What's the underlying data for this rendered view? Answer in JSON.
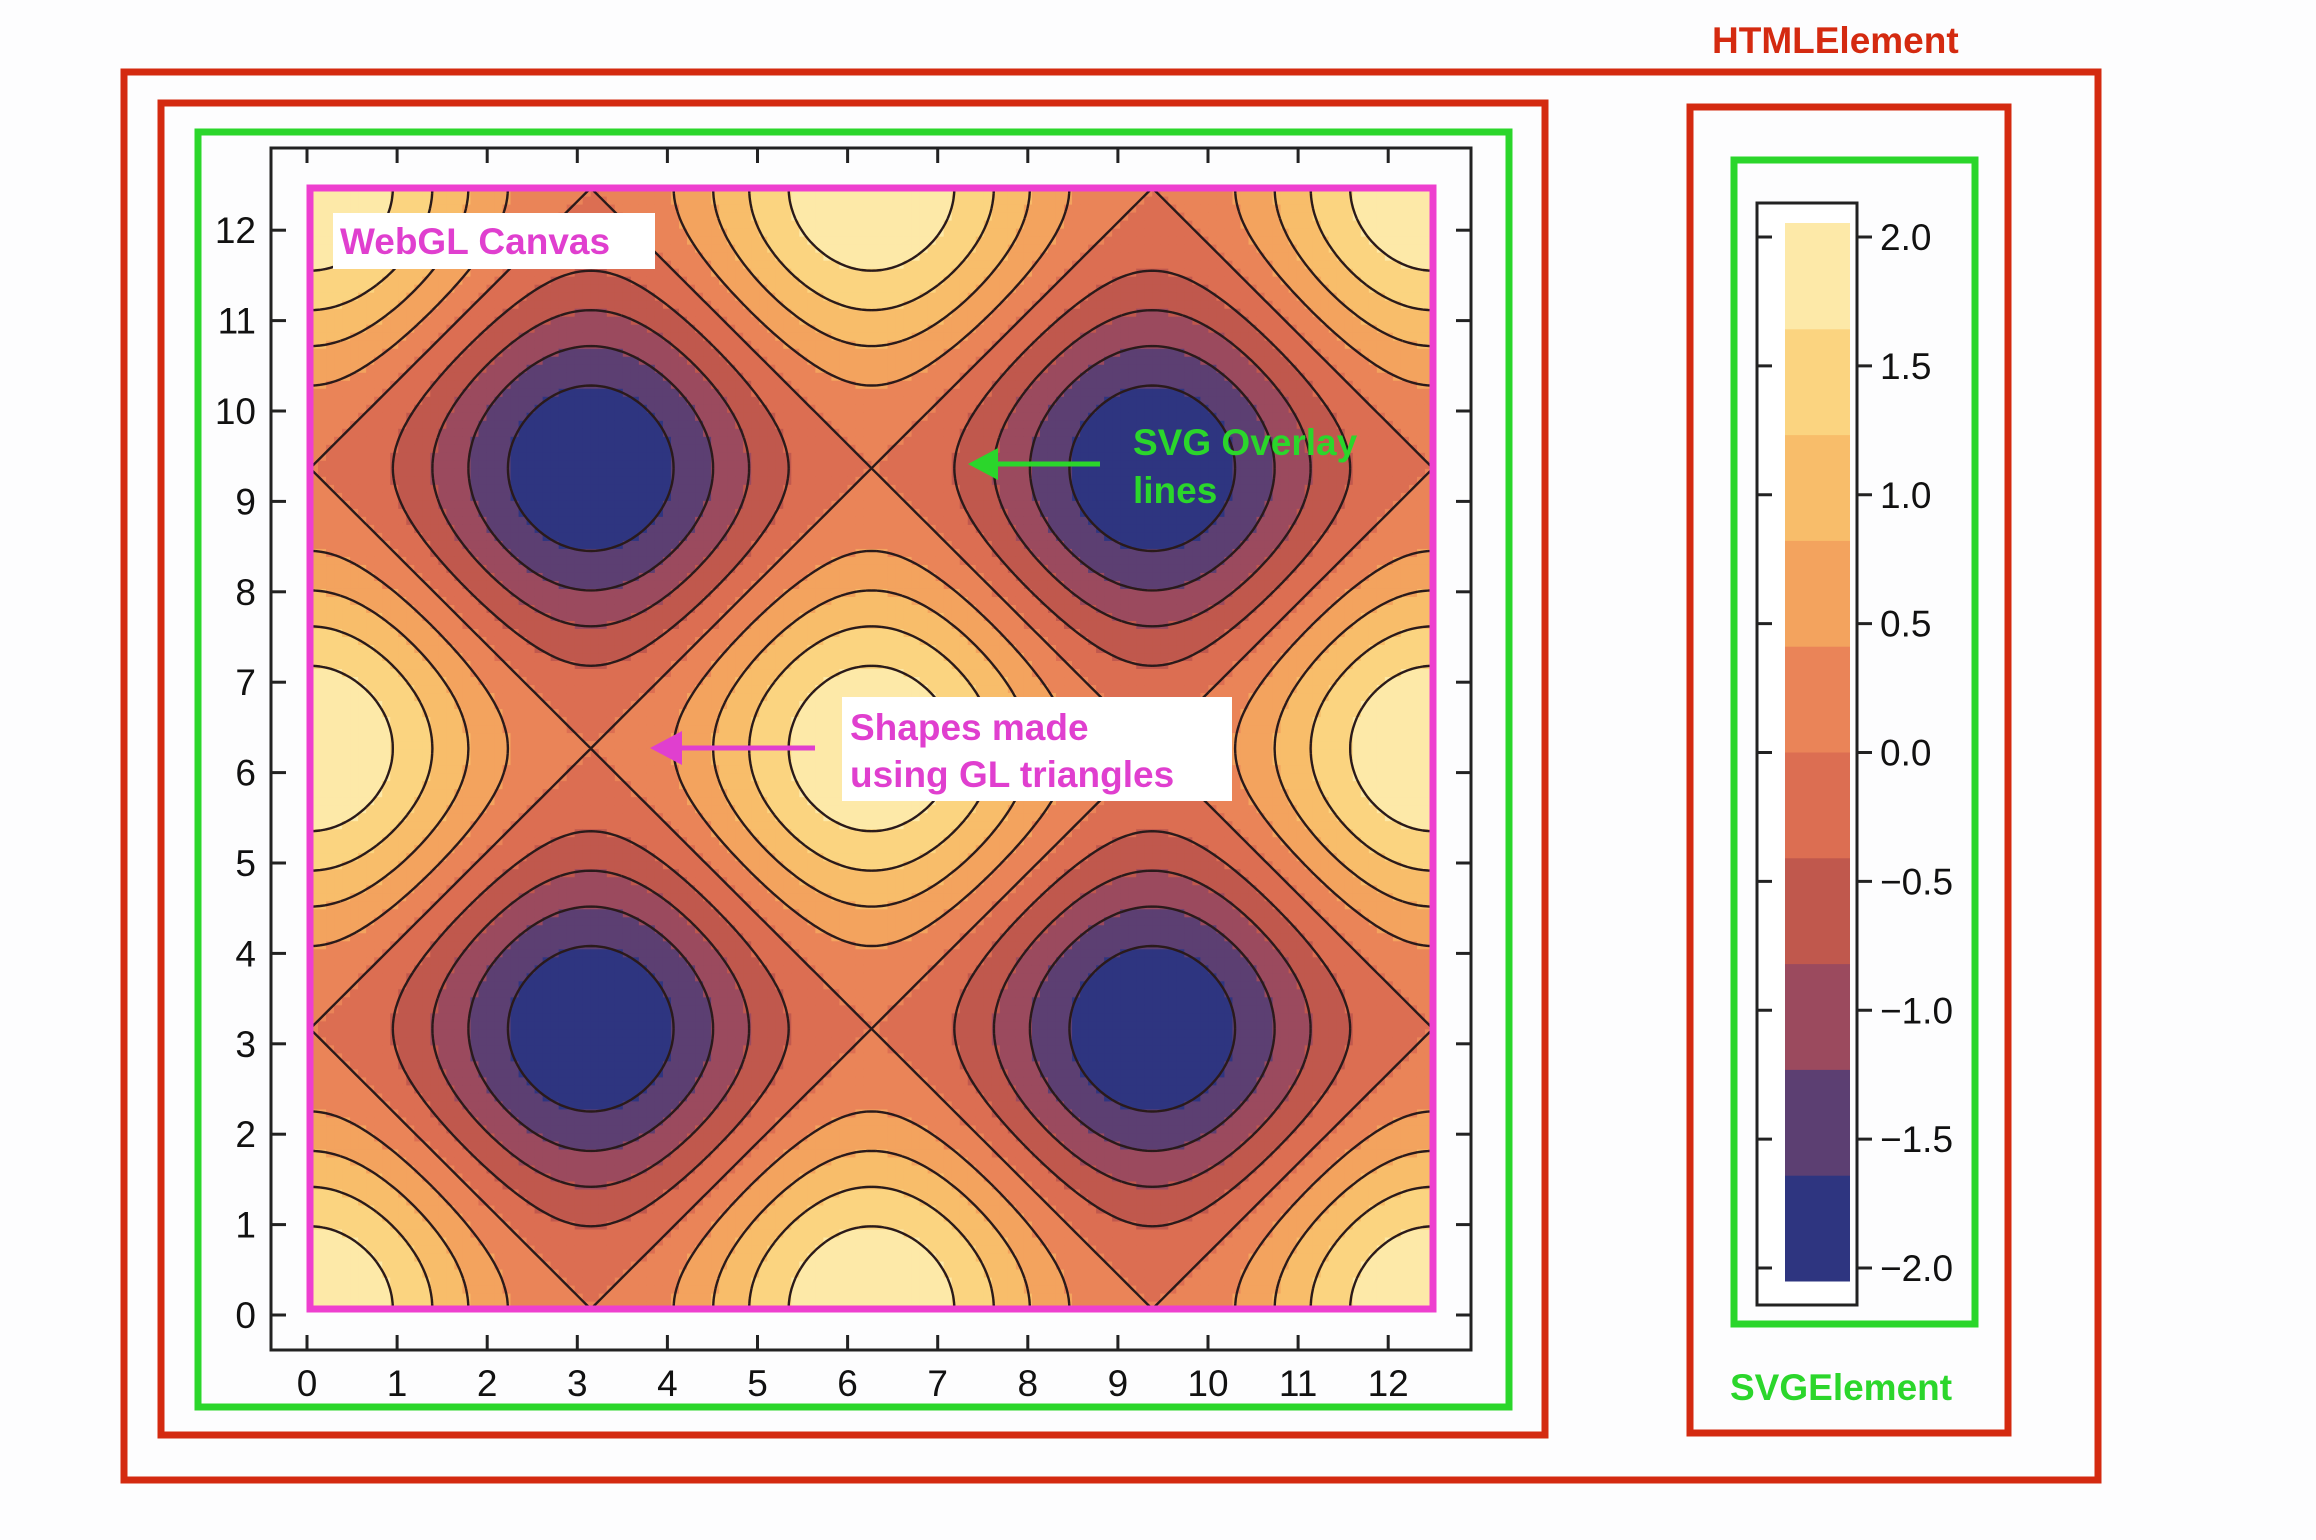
{
  "labels": {
    "html_element": "HTMLElement",
    "svg_element": "SVGElement",
    "webgl_canvas": "WebGL Canvas",
    "svg_overlay": [
      "SVG Overlay",
      "lines"
    ],
    "gl_shapes": [
      "Shapes made",
      "using GL triangles"
    ]
  },
  "colors": {
    "html_box": "#d42a10",
    "svg_box": "#2bd62b",
    "canvas_box": "#ee3fcf",
    "svg_text": "#2bd62b",
    "canvas_text": "#e03fcf",
    "contour_line": "#2a1a1a"
  },
  "chart_data": {
    "type": "contour",
    "function": "sin(x) * sin(y) + cos(x) * cos(y) ... rendered as cos(x) + cos(y)",
    "x_ticks": [
      "0",
      "1",
      "2",
      "3",
      "4",
      "5",
      "6",
      "7",
      "8",
      "9",
      "10",
      "11",
      "12"
    ],
    "y_ticks": [
      "0",
      "1",
      "2",
      "3",
      "4",
      "5",
      "6",
      "7",
      "8",
      "9",
      "10",
      "11",
      "12"
    ],
    "xlim": [
      0,
      12.57
    ],
    "ylim": [
      0,
      12.57
    ],
    "colorbar": {
      "ticks": [
        "2.0",
        "1.5",
        "1.0",
        "0.5",
        "0.0",
        "−0.5",
        "−1.0",
        "−1.5",
        "−2.0"
      ],
      "levels": [
        -2.0,
        -1.6,
        -1.2,
        -0.8,
        -0.4,
        0.0,
        0.4,
        0.8,
        1.2,
        1.6,
        2.0
      ],
      "band_colors": [
        "#2e3580",
        "#5c3f72",
        "#9b4a5e",
        "#c0584d",
        "#dc6e52",
        "#ea8458",
        "#f3a35e",
        "#f8bd6a",
        "#fbd480",
        "#fde9a8"
      ]
    }
  }
}
